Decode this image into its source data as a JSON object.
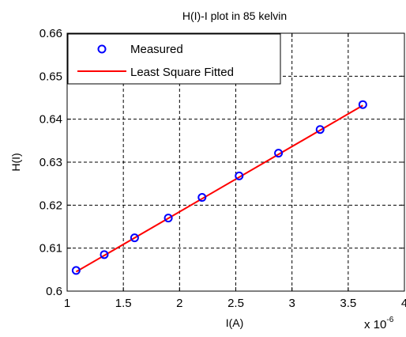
{
  "chart_data": {
    "type": "scatter",
    "title": "H(I)-I plot in 85 kelvin",
    "xlabel": "I(A)",
    "ylabel": "H(I)",
    "x_multiplier_label": "x 10",
    "x_multiplier_exponent": "-6",
    "xlim": [
      1,
      4
    ],
    "ylim": [
      0.6,
      0.66
    ],
    "xticks": [
      1,
      1.5,
      2,
      2.5,
      3,
      3.5,
      4
    ],
    "xtick_labels": [
      "1",
      "1.5",
      "2",
      "2.5",
      "3",
      "3.5",
      "4"
    ],
    "yticks": [
      0.6,
      0.61,
      0.62,
      0.63,
      0.64,
      0.65,
      0.66
    ],
    "ytick_labels": [
      "0.6",
      "0.61",
      "0.62",
      "0.63",
      "0.64",
      "0.65",
      "0.66"
    ],
    "grid": true,
    "legend_position": "top-left",
    "series": [
      {
        "name": "Measured",
        "kind": "markers",
        "marker": "circle",
        "color": "#0000ff",
        "x": [
          1.08,
          1.33,
          1.6,
          1.9,
          2.2,
          2.53,
          2.88,
          3.25,
          3.63
        ],
        "y": [
          0.6048,
          0.6085,
          0.6124,
          0.617,
          0.6218,
          0.6268,
          0.6321,
          0.6376,
          0.6434
        ]
      },
      {
        "name": "Least Square Fitted",
        "kind": "line",
        "color": "#ff0000",
        "x": [
          1.08,
          3.63
        ],
        "y": [
          0.6045,
          0.6432
        ]
      }
    ]
  }
}
